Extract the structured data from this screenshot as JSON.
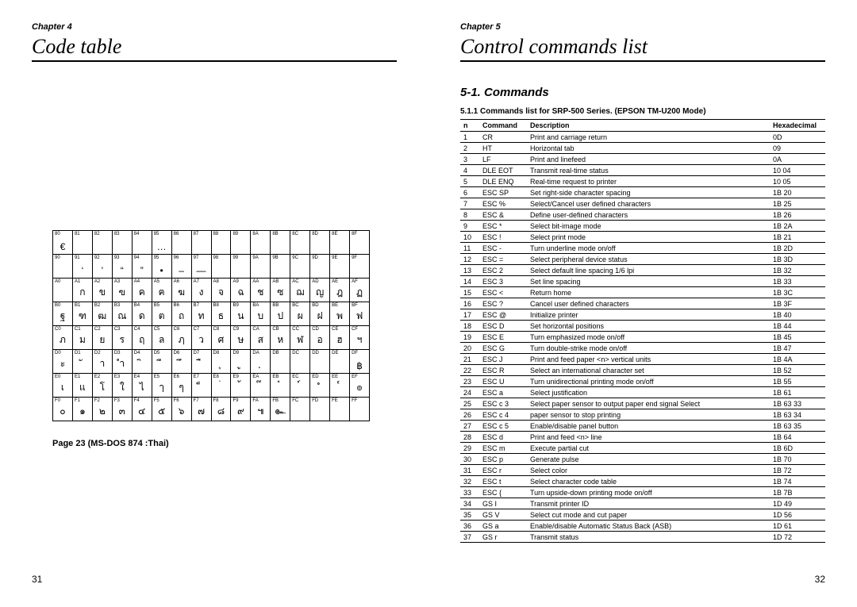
{
  "left": {
    "chapter": "Chapter 4",
    "title": "Code table",
    "caption": "Page 23 (MS-DOS 874 :Thai)",
    "pageNumber": "31",
    "codeTable": {
      "rowLabels": [
        "8",
        "9",
        "A",
        "B",
        "C",
        "D",
        "E",
        "F"
      ],
      "colLabels": [
        "0",
        "1",
        "2",
        "3",
        "4",
        "5",
        "6",
        "7",
        "8",
        "9",
        "A",
        "B",
        "C",
        "D",
        "E",
        "F"
      ],
      "cells": [
        [
          "€",
          "",
          "",
          "",
          "",
          "…",
          "",
          "",
          "",
          "",
          "",
          "",
          "",
          "",
          "",
          ""
        ],
        [
          "",
          "‘",
          "’",
          "“",
          "”",
          "•",
          "–",
          "—",
          "",
          "",
          "",
          "",
          "",
          "",
          "",
          ""
        ],
        [
          " ",
          "ก",
          "ข",
          "ฃ",
          "ค",
          "ฅ",
          "ฆ",
          "ง",
          "จ",
          "ฉ",
          "ช",
          "ซ",
          "ฌ",
          "ญ",
          "ฎ",
          "ฏ"
        ],
        [
          "ฐ",
          "ฑ",
          "ฒ",
          "ณ",
          "ด",
          "ต",
          "ถ",
          "ท",
          "ธ",
          "น",
          "บ",
          "ป",
          "ผ",
          "ฝ",
          "พ",
          "ฟ"
        ],
        [
          "ภ",
          "ม",
          "ย",
          "ร",
          "ฤ",
          "ล",
          "ฦ",
          "ว",
          "ศ",
          "ษ",
          "ส",
          "ห",
          "ฬ",
          "อ",
          "ฮ",
          "ฯ"
        ],
        [
          "ะ",
          "ั",
          "า",
          "ำ",
          "ิ",
          "ี",
          "ึ",
          "ื",
          "ุ",
          "ู",
          "ฺ",
          "",
          "",
          "",
          "",
          "฿"
        ],
        [
          "เ",
          "แ",
          "โ",
          "ใ",
          "ไ",
          "ๅ",
          "ๆ",
          "็",
          "่",
          "้",
          "๊",
          "๋",
          "์",
          "ํ",
          "๎",
          "๏"
        ],
        [
          "๐",
          "๑",
          "๒",
          "๓",
          "๔",
          "๕",
          "๖",
          "๗",
          "๘",
          "๙",
          "๚",
          "๛",
          "",
          "",
          "",
          ""
        ]
      ]
    }
  },
  "right": {
    "chapter": "Chapter 5",
    "title": "Control commands list",
    "section": "5-1. Commands",
    "subsection": "5.1.1 Commands list for SRP-500 Series. (EPSON TM-U200 Mode)",
    "pageNumber": "32",
    "headers": {
      "n": "n",
      "cmd": "Command",
      "desc": "Description",
      "hex": "Hexadecimal"
    },
    "rows": [
      {
        "n": "1",
        "cmd": "CR",
        "desc": "Print and carriage return",
        "hex": "0D"
      },
      {
        "n": "2",
        "cmd": "HT",
        "desc": "Horizontal tab",
        "hex": "09"
      },
      {
        "n": "3",
        "cmd": "LF",
        "desc": "Print and linefeed",
        "hex": "0A"
      },
      {
        "n": "4",
        "cmd": "DLE EOT",
        "desc": "Transmit real-time status",
        "hex": "10 04"
      },
      {
        "n": "5",
        "cmd": "DLE ENQ",
        "desc": "Real-time request to printer",
        "hex": "10 05"
      },
      {
        "n": "6",
        "cmd": "ESC SP",
        "desc": "Set right-side character spacing",
        "hex": "1B 20"
      },
      {
        "n": "7",
        "cmd": "ESC %",
        "desc": "Select/Cancel user defined characters",
        "hex": "1B 25"
      },
      {
        "n": "8",
        "cmd": "ESC &",
        "desc": "Define user-defined characters",
        "hex": "1B 26"
      },
      {
        "n": "9",
        "cmd": "ESC *",
        "desc": "Select bit-image mode",
        "hex": "1B 2A"
      },
      {
        "n": "10",
        "cmd": "ESC !",
        "desc": "Select print mode",
        "hex": "1B 21"
      },
      {
        "n": "11",
        "cmd": "ESC -",
        "desc": "Turn underline mode on/off",
        "hex": "1B 2D"
      },
      {
        "n": "12",
        "cmd": "ESC =",
        "desc": "Select peripheral device status",
        "hex": "1B 3D"
      },
      {
        "n": "13",
        "cmd": "ESC 2",
        "desc": "Select default line spacing 1/6 lpi",
        "hex": "1B 32"
      },
      {
        "n": "14",
        "cmd": "ESC 3",
        "desc": "Set line spacing",
        "hex": "1B 33"
      },
      {
        "n": "15",
        "cmd": "ESC <",
        "desc": "Return home",
        "hex": "1B 3C"
      },
      {
        "n": "16",
        "cmd": "ESC ?",
        "desc": "Cancel user defined characters",
        "hex": "1B 3F"
      },
      {
        "n": "17",
        "cmd": "ESC @",
        "desc": "Initialize printer",
        "hex": "1B 40"
      },
      {
        "n": "18",
        "cmd": "ESC D",
        "desc": "Set horizontal positions",
        "hex": "1B 44"
      },
      {
        "n": "19",
        "cmd": "ESC E",
        "desc": "Turn emphasized mode on/off",
        "hex": "1B 45"
      },
      {
        "n": "20",
        "cmd": "ESC G",
        "desc": "Turn double-strike mode on/off",
        "hex": "1B 47"
      },
      {
        "n": "21",
        "cmd": "ESC J",
        "desc": "Print and feed paper <n> vertical units",
        "hex": "1B 4A"
      },
      {
        "n": "22",
        "cmd": "ESC R",
        "desc": "Select an international character set",
        "hex": "1B 52"
      },
      {
        "n": "23",
        "cmd": "ESC U",
        "desc": "Turn unidirectional printing mode on/off",
        "hex": "1B 55"
      },
      {
        "n": "24",
        "cmd": "ESC a",
        "desc": "Select justification",
        "hex": "1B 61"
      },
      {
        "n": "25",
        "cmd": "ESC c 3",
        "desc": "Select paper sensor to output paper end signal Select",
        "hex": "1B 63 33"
      },
      {
        "n": "26",
        "cmd": "ESC c 4",
        "desc": "paper sensor to stop printing",
        "hex": "1B 63 34"
      },
      {
        "n": "27",
        "cmd": "ESC c 5",
        "desc": "Enable/disable panel button",
        "hex": "1B 63 35"
      },
      {
        "n": "28",
        "cmd": "ESC d",
        "desc": "Print and feed <n> line",
        "hex": "1B 64"
      },
      {
        "n": "29",
        "cmd": "ESC m",
        "desc": "Execute partial cut",
        "hex": "1B 6D"
      },
      {
        "n": "30",
        "cmd": "ESC p",
        "desc": "Generate pulse",
        "hex": "1B 70"
      },
      {
        "n": "31",
        "cmd": "ESC r",
        "desc": "Select color",
        "hex": "1B 72"
      },
      {
        "n": "32",
        "cmd": "ESC t",
        "desc": "Select character code table",
        "hex": "1B 74"
      },
      {
        "n": "33",
        "cmd": "ESC {",
        "desc": "Turn upside-down printing mode on/off",
        "hex": "1B 7B"
      },
      {
        "n": "34",
        "cmd": "GS I",
        "desc": "Transmit printer ID",
        "hex": "1D 49"
      },
      {
        "n": "35",
        "cmd": "GS V",
        "desc": "Select cut mode and cut paper",
        "hex": "1D 56"
      },
      {
        "n": "36",
        "cmd": "GS a",
        "desc": "Enable/disable Automatic Status Back (ASB)",
        "hex": "1D 61"
      },
      {
        "n": "37",
        "cmd": "GS r",
        "desc": "Transmit status",
        "hex": "1D 72"
      }
    ]
  }
}
